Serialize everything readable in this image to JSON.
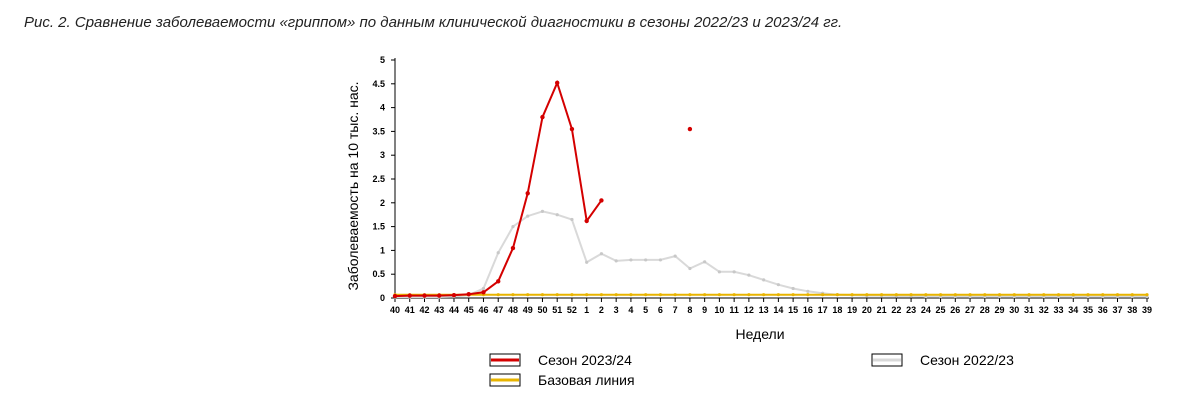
{
  "caption": "Рис. 2. Сравнение заболеваемости «гриппом» по данным клинической диагностики в сезоны 2022/23 и 2023/24 гг.",
  "chart_data": {
    "type": "line",
    "xlabel": "Недели",
    "ylabel": "Заболеваемость на 10 тыс. нас.",
    "ylim": [
      0,
      5
    ],
    "yticks": [
      "0",
      "0.5",
      "1",
      "1.5",
      "2",
      "2.5",
      "3",
      "3.5",
      "4",
      "4.5",
      "5"
    ],
    "categories": [
      "40",
      "41",
      "42",
      "43",
      "44",
      "45",
      "46",
      "47",
      "48",
      "49",
      "50",
      "51",
      "52",
      "1",
      "2",
      "3",
      "4",
      "5",
      "6",
      "7",
      "8",
      "9",
      "10",
      "11",
      "12",
      "13",
      "14",
      "15",
      "16",
      "17",
      "18",
      "19",
      "20",
      "21",
      "22",
      "23",
      "24",
      "25",
      "26",
      "27",
      "28",
      "29",
      "30",
      "31",
      "32",
      "33",
      "34",
      "35",
      "36",
      "37",
      "38",
      "39"
    ],
    "grid": false,
    "legend_position": "bottom",
    "series": [
      {
        "name": "Сезон 2023/24",
        "color": "#d40000",
        "values": [
          0.04,
          0.05,
          0.05,
          0.05,
          0.06,
          0.08,
          0.12,
          0.35,
          1.05,
          2.2,
          3.8,
          4.52,
          3.55,
          1.62,
          2.05,
          null,
          null,
          null,
          null,
          null,
          3.55,
          null,
          null,
          null,
          null,
          null,
          null,
          null,
          null,
          null,
          null,
          null,
          null,
          null,
          null,
          null,
          null,
          null,
          null,
          null,
          null,
          null,
          null,
          null,
          null,
          null,
          null,
          null,
          null,
          null,
          null,
          null
        ]
      },
      {
        "name": "Базовая линия",
        "color": "#e8b400",
        "values": [
          0.07,
          0.07,
          0.07,
          0.07,
          0.07,
          0.07,
          0.07,
          0.07,
          0.07,
          0.07,
          0.07,
          0.07,
          0.07,
          0.07,
          0.07,
          0.07,
          0.07,
          0.07,
          0.07,
          0.07,
          0.07,
          0.07,
          0.07,
          0.07,
          0.07,
          0.07,
          0.07,
          0.07,
          0.07,
          0.07,
          0.07,
          0.07,
          0.07,
          0.07,
          0.07,
          0.07,
          0.07,
          0.07,
          0.07,
          0.07,
          0.07,
          0.07,
          0.07,
          0.07,
          0.07,
          0.07,
          0.07,
          0.07,
          0.07,
          0.07,
          0.07,
          0.07
        ]
      },
      {
        "name": "Сезон 2022/23",
        "color": "#d9d9d9",
        "values": [
          0.02,
          0.02,
          0.02,
          0.02,
          0.03,
          0.06,
          0.2,
          0.95,
          1.5,
          1.72,
          1.82,
          1.75,
          1.65,
          0.75,
          0.93,
          0.78,
          0.8,
          0.8,
          0.8,
          0.88,
          0.62,
          0.76,
          0.55,
          0.55,
          0.48,
          0.38,
          0.28,
          0.2,
          0.14,
          0.1,
          0.07,
          0.06,
          0.05,
          0.05,
          0.04,
          0.04,
          0.03,
          0.03,
          0.03,
          0.03,
          0.03,
          0.03,
          0.03,
          0.03,
          0.03,
          0.03,
          0.03,
          0.03,
          0.03,
          0.03,
          0.03,
          0.03
        ]
      }
    ]
  }
}
